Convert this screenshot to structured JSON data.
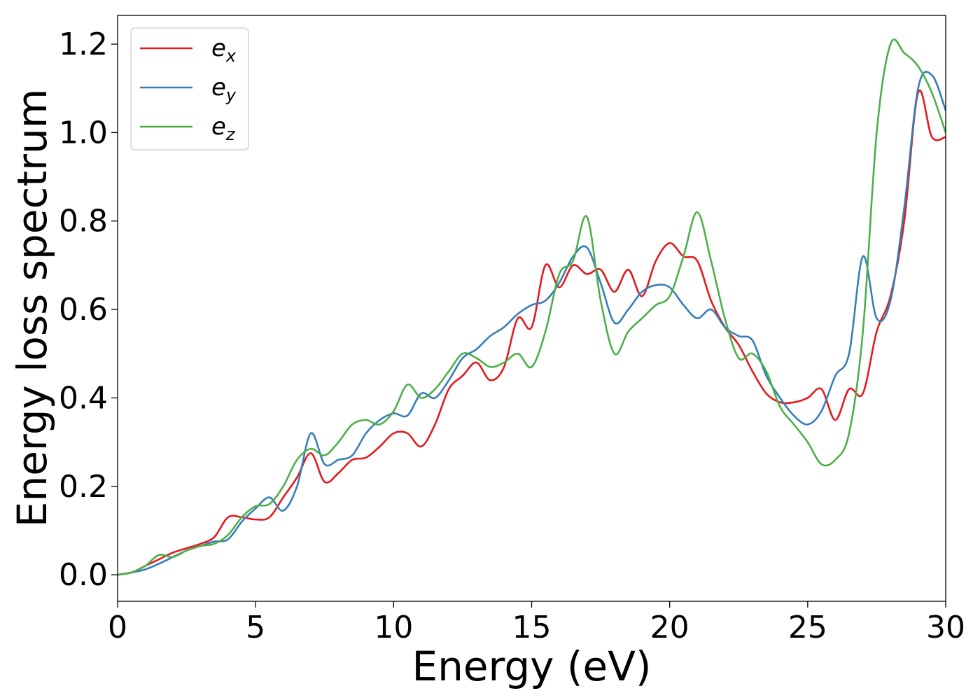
{
  "chart_data": {
    "type": "line",
    "title": "",
    "xlabel": "Energy (eV)",
    "ylabel": "Energy loss spectrum",
    "xlim": [
      0,
      30
    ],
    "ylim": [
      -0.06,
      1.265
    ],
    "xticks": [
      0,
      5,
      10,
      15,
      20,
      25,
      30
    ],
    "xtick_labels": [
      "0",
      "5",
      "10",
      "15",
      "20",
      "25",
      "30"
    ],
    "yticks": [
      0.0,
      0.2,
      0.4,
      0.6,
      0.8,
      1.0,
      1.2
    ],
    "ytick_labels": [
      "0.0",
      "0.2",
      "0.4",
      "0.6",
      "0.8",
      "1.0",
      "1.2"
    ],
    "grid": false,
    "legend_position": "top-left",
    "series": [
      {
        "name": "e_x",
        "label_base": "e",
        "label_sub": "x",
        "color": "#e41a1c",
        "x": [
          0,
          0.5,
          1,
          1.5,
          2,
          2.5,
          3,
          3.5,
          4,
          4.5,
          5,
          5.5,
          6,
          6.5,
          7,
          7.5,
          8,
          8.5,
          9,
          9.5,
          10,
          10.5,
          11,
          11.5,
          12,
          12.5,
          13,
          13.5,
          14,
          14.5,
          15,
          15.5,
          16,
          16.5,
          17,
          17.5,
          18,
          18.5,
          19,
          19.5,
          20,
          20.5,
          21,
          21.5,
          22,
          22.5,
          23,
          23.5,
          24,
          24.5,
          25,
          25.5,
          26,
          26.5,
          27,
          27.5,
          28,
          28.5,
          29,
          29.5,
          30
        ],
        "y": [
          0,
          0.005,
          0.02,
          0.035,
          0.05,
          0.06,
          0.07,
          0.085,
          0.13,
          0.13,
          0.125,
          0.13,
          0.175,
          0.22,
          0.275,
          0.21,
          0.23,
          0.26,
          0.265,
          0.29,
          0.32,
          0.32,
          0.29,
          0.34,
          0.42,
          0.45,
          0.48,
          0.44,
          0.47,
          0.58,
          0.56,
          0.7,
          0.65,
          0.7,
          0.68,
          0.69,
          0.64,
          0.69,
          0.63,
          0.71,
          0.75,
          0.72,
          0.71,
          0.62,
          0.56,
          0.52,
          0.46,
          0.41,
          0.39,
          0.39,
          0.4,
          0.42,
          0.35,
          0.42,
          0.41,
          0.55,
          0.63,
          0.8,
          1.09,
          0.99,
          0.99
        ]
      },
      {
        "name": "e_y",
        "label_base": "e",
        "label_sub": "y",
        "color": "#377eb8",
        "x": [
          0,
          0.5,
          1,
          1.5,
          2,
          2.5,
          3,
          3.5,
          4,
          4.5,
          5,
          5.5,
          6,
          6.5,
          7,
          7.5,
          8,
          8.5,
          9,
          9.5,
          10,
          10.5,
          11,
          11.5,
          12,
          12.5,
          13,
          13.5,
          14,
          14.5,
          15,
          15.5,
          16,
          16.5,
          17,
          17.5,
          18,
          18.5,
          19,
          19.5,
          20,
          20.5,
          21,
          21.5,
          22,
          22.5,
          23,
          23.5,
          24,
          24.5,
          25,
          25.5,
          26,
          26.5,
          27,
          27.5,
          28,
          28.5,
          29,
          29.5,
          30
        ],
        "y": [
          0,
          0.005,
          0.012,
          0.025,
          0.04,
          0.055,
          0.065,
          0.075,
          0.08,
          0.12,
          0.15,
          0.175,
          0.145,
          0.2,
          0.32,
          0.25,
          0.26,
          0.27,
          0.32,
          0.35,
          0.365,
          0.36,
          0.41,
          0.4,
          0.44,
          0.49,
          0.51,
          0.54,
          0.56,
          0.59,
          0.61,
          0.62,
          0.66,
          0.72,
          0.74,
          0.66,
          0.57,
          0.6,
          0.64,
          0.655,
          0.65,
          0.61,
          0.58,
          0.6,
          0.56,
          0.54,
          0.53,
          0.45,
          0.4,
          0.36,
          0.34,
          0.37,
          0.45,
          0.5,
          0.72,
          0.58,
          0.62,
          0.83,
          1.1,
          1.13,
          1.05
        ]
      },
      {
        "name": "e_z",
        "label_base": "e",
        "label_sub": "z",
        "color": "#4daf4a",
        "x": [
          0,
          0.5,
          1,
          1.5,
          2,
          2.5,
          3,
          3.5,
          4,
          4.5,
          5,
          5.5,
          6,
          6.5,
          7,
          7.5,
          8,
          8.5,
          9,
          9.5,
          10,
          10.5,
          11,
          11.5,
          12,
          12.5,
          13,
          13.5,
          14,
          14.5,
          15,
          15.5,
          16,
          16.5,
          17,
          17.5,
          18,
          18.5,
          19,
          19.5,
          20,
          20.5,
          21,
          21.5,
          22,
          22.5,
          23,
          23.5,
          24,
          24.5,
          25,
          25.5,
          26,
          26.5,
          27,
          27.5,
          28,
          28.5,
          29,
          29.5,
          30
        ],
        "y": [
          0,
          0.005,
          0.02,
          0.045,
          0.04,
          0.055,
          0.065,
          0.07,
          0.09,
          0.13,
          0.155,
          0.16,
          0.2,
          0.26,
          0.285,
          0.27,
          0.3,
          0.34,
          0.35,
          0.34,
          0.37,
          0.43,
          0.4,
          0.42,
          0.46,
          0.5,
          0.49,
          0.47,
          0.48,
          0.5,
          0.47,
          0.55,
          0.68,
          0.71,
          0.81,
          0.62,
          0.5,
          0.55,
          0.58,
          0.61,
          0.63,
          0.72,
          0.82,
          0.71,
          0.58,
          0.49,
          0.5,
          0.46,
          0.38,
          0.34,
          0.3,
          0.25,
          0.26,
          0.32,
          0.55,
          1.0,
          1.2,
          1.18,
          1.15,
          1.09,
          1.0
        ]
      }
    ]
  }
}
